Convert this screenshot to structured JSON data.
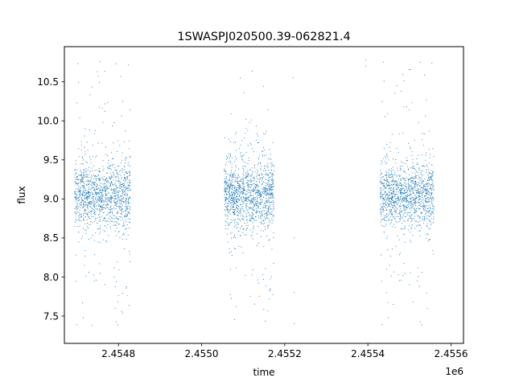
{
  "chart_data": {
    "type": "scatter",
    "title": "1SWASPJ020500.39-062821.4",
    "xlabel": "time",
    "ylabel": "flux",
    "x_offset_label": "1e6",
    "xlim": [
      2454670,
      2455630
    ],
    "ylim": [
      7.15,
      10.95
    ],
    "x_ticks": [
      {
        "value": 2454800,
        "label": "2.4548"
      },
      {
        "value": 2455000,
        "label": "2.4550"
      },
      {
        "value": 2455200,
        "label": "2.4552"
      },
      {
        "value": 2455400,
        "label": "2.4554"
      },
      {
        "value": 2455600,
        "label": "2.4556"
      }
    ],
    "y_ticks": [
      {
        "value": 7.5,
        "label": "7.5"
      },
      {
        "value": 8.0,
        "label": "8.0"
      },
      {
        "value": 8.5,
        "label": "8.5"
      },
      {
        "value": 9.0,
        "label": "9.0"
      },
      {
        "value": 9.5,
        "label": "9.5"
      },
      {
        "value": 10.0,
        "label": "10.0"
      },
      {
        "value": 10.5,
        "label": "10.5"
      }
    ],
    "grid": false,
    "series": [
      {
        "color": "#1f77b4",
        "observing_seasons": [
          {
            "x_range": [
              2454695,
              2454830
            ],
            "median_flux": 9.05,
            "flux_range": [
              7.38,
              10.78
            ]
          },
          {
            "x_range": [
              2455055,
              2455175
            ],
            "median_flux": 9.05,
            "flux_range": [
              7.35,
              10.78
            ]
          },
          {
            "x_range": [
              2455430,
              2455560
            ],
            "median_flux": 9.05,
            "flux_range": [
              7.38,
              10.8
            ]
          }
        ],
        "isolated_points": [
          {
            "x": 2455223,
            "y": 8.5
          },
          {
            "x": 2455223,
            "y": 7.8
          },
          {
            "x": 2455223,
            "y": 7.4
          },
          {
            "x": 2455220,
            "y": 10.55
          },
          {
            "x": 2455395,
            "y": 10.78
          },
          {
            "x": 2455395,
            "y": 10.7
          }
        ]
      }
    ]
  }
}
